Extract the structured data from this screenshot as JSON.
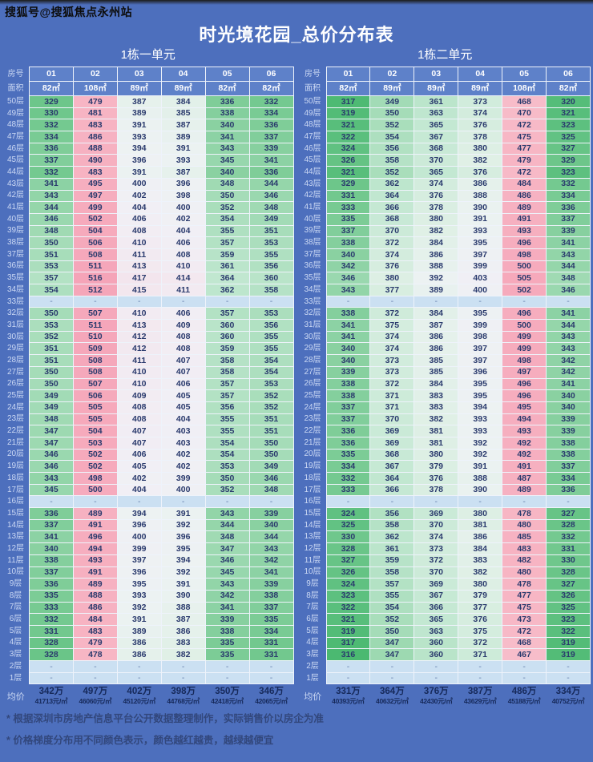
{
  "watermark": "搜狐号@搜狐焦点永州站",
  "title": "时光境花园_总价分布表",
  "empty_marker": "-",
  "notes": [
    "* 根据深圳市房地产信息平台公开数据整理制作，实际销售价以房企为准",
    "* 价格梯度分布用不同颜色表示，颜色越红越贵，越绿越便宜"
  ],
  "colors": {
    "page_bg": "#4d6fbd",
    "header_cell_bg": "#5e81c9",
    "grid_line": "#eef3fb",
    "cell_text": "#2a3a6d",
    "row_label_text": "#ccd9f4",
    "title_text": "#ffffff",
    "watermark_text": "#0d0d0d",
    "note_text": "#32477c",
    "empty_cell_bg": "#cbe0f2",
    "avg_text": "#16295a",
    "heat_stops": [
      [
        316,
        "#4bb971"
      ],
      [
        335,
        "#7ccc96"
      ],
      [
        350,
        "#a5dcb8"
      ],
      [
        365,
        "#c3e8d2"
      ],
      [
        380,
        "#ddefe4"
      ],
      [
        392,
        "#ecf2f2"
      ],
      [
        405,
        "#f1eff5"
      ],
      [
        425,
        "#f5dfe7"
      ],
      [
        450,
        "#f7c9d4"
      ],
      [
        475,
        "#f7b7c5"
      ],
      [
        516,
        "#f5a4b8"
      ]
    ]
  },
  "chart_data": [
    {
      "type": "heatmap",
      "title": "1栋一单元",
      "row_header": "房号",
      "area_header": "面积",
      "columns": [
        "01",
        "02",
        "03",
        "04",
        "05",
        "06"
      ],
      "areas": [
        "82㎡",
        "108㎡",
        "89㎡",
        "89㎡",
        "82㎡",
        "82㎡"
      ],
      "rows": [
        "50层",
        "49层",
        "48层",
        "47层",
        "46层",
        "45层",
        "44层",
        "43层",
        "42层",
        "41层",
        "40层",
        "39层",
        "38层",
        "37层",
        "36层",
        "35层",
        "34层",
        "33层",
        "32层",
        "31层",
        "30层",
        "29层",
        "28层",
        "27层",
        "26层",
        "25层",
        "24层",
        "23层",
        "22层",
        "21层",
        "20层",
        "19层",
        "18层",
        "17层",
        "16层",
        "15层",
        "14层",
        "13层",
        "12层",
        "11层",
        "10层",
        "9层",
        "8层",
        "7层",
        "6层",
        "5层",
        "4层",
        "3层",
        "2层",
        "1层"
      ],
      "values": [
        [
          329,
          479,
          387,
          384,
          336,
          332
        ],
        [
          330,
          481,
          389,
          385,
          338,
          334
        ],
        [
          332,
          483,
          391,
          387,
          340,
          336
        ],
        [
          334,
          486,
          393,
          389,
          341,
          337
        ],
        [
          336,
          488,
          394,
          391,
          343,
          339
        ],
        [
          337,
          490,
          396,
          393,
          345,
          341
        ],
        [
          332,
          483,
          391,
          387,
          340,
          336
        ],
        [
          341,
          495,
          400,
          396,
          348,
          344
        ],
        [
          343,
          497,
          402,
          398,
          350,
          346
        ],
        [
          344,
          499,
          404,
          400,
          352,
          348
        ],
        [
          346,
          502,
          406,
          402,
          354,
          349
        ],
        [
          348,
          504,
          408,
          404,
          355,
          351
        ],
        [
          350,
          506,
          410,
          406,
          357,
          353
        ],
        [
          351,
          508,
          411,
          408,
          359,
          355
        ],
        [
          353,
          511,
          413,
          410,
          361,
          356
        ],
        [
          357,
          516,
          417,
          414,
          364,
          360
        ],
        [
          354,
          512,
          415,
          411,
          362,
          358
        ],
        [
          null,
          null,
          null,
          null,
          null,
          null
        ],
        [
          350,
          507,
          410,
          406,
          357,
          353
        ],
        [
          353,
          511,
          413,
          409,
          360,
          356
        ],
        [
          352,
          510,
          412,
          408,
          360,
          355
        ],
        [
          351,
          509,
          412,
          408,
          359,
          355
        ],
        [
          351,
          508,
          411,
          407,
          358,
          354
        ],
        [
          350,
          508,
          410,
          407,
          358,
          354
        ],
        [
          350,
          507,
          410,
          406,
          357,
          353
        ],
        [
          349,
          506,
          409,
          405,
          357,
          352
        ],
        [
          349,
          505,
          408,
          405,
          356,
          352
        ],
        [
          348,
          505,
          408,
          404,
          355,
          351
        ],
        [
          347,
          504,
          407,
          403,
          355,
          351
        ],
        [
          347,
          503,
          407,
          403,
          354,
          350
        ],
        [
          346,
          502,
          406,
          402,
          354,
          350
        ],
        [
          346,
          502,
          405,
          402,
          353,
          349
        ],
        [
          343,
          498,
          402,
          399,
          350,
          346
        ],
        [
          345,
          500,
          404,
          400,
          352,
          348
        ],
        [
          null,
          null,
          null,
          null,
          null,
          null
        ],
        [
          336,
          489,
          394,
          391,
          343,
          339
        ],
        [
          337,
          491,
          396,
          392,
          344,
          340
        ],
        [
          341,
          496,
          400,
          396,
          348,
          344
        ],
        [
          340,
          494,
          399,
          395,
          347,
          343
        ],
        [
          338,
          493,
          397,
          394,
          346,
          342
        ],
        [
          337,
          491,
          396,
          392,
          345,
          341
        ],
        [
          336,
          489,
          395,
          391,
          343,
          339
        ],
        [
          335,
          488,
          393,
          390,
          342,
          338
        ],
        [
          333,
          486,
          392,
          388,
          341,
          337
        ],
        [
          332,
          484,
          391,
          387,
          339,
          335
        ],
        [
          331,
          483,
          389,
          386,
          338,
          334
        ],
        [
          328,
          479,
          386,
          383,
          335,
          331
        ],
        [
          328,
          478,
          386,
          382,
          335,
          331
        ],
        [
          null,
          null,
          null,
          null,
          null,
          null
        ],
        [
          null,
          null,
          null,
          null,
          null,
          null
        ]
      ],
      "average": {
        "label": "均价",
        "prices": [
          "342万",
          "497万",
          "402万",
          "398万",
          "350万",
          "346万"
        ],
        "unit_prices": [
          "41713元/㎡",
          "46060元/㎡",
          "45120元/㎡",
          "44768元/㎡",
          "42418元/㎡",
          "42065元/㎡"
        ]
      }
    },
    {
      "type": "heatmap",
      "title": "1栋二单元",
      "row_header": "房号",
      "area_header": "面积",
      "columns": [
        "01",
        "02",
        "03",
        "04",
        "05",
        "06"
      ],
      "areas": [
        "82㎡",
        "89㎡",
        "89㎡",
        "89㎡",
        "108㎡",
        "82㎡"
      ],
      "rows": [
        "50层",
        "49层",
        "48层",
        "47层",
        "46层",
        "45层",
        "44层",
        "43层",
        "42层",
        "41层",
        "40层",
        "39层",
        "38层",
        "37层",
        "36层",
        "35层",
        "34层",
        "33层",
        "32层",
        "31层",
        "30层",
        "29层",
        "28层",
        "27层",
        "26层",
        "25层",
        "24层",
        "23层",
        "22层",
        "21层",
        "20层",
        "19层",
        "18层",
        "17层",
        "16层",
        "15层",
        "14层",
        "13层",
        "12层",
        "11层",
        "10层",
        "9层",
        "8层",
        "7层",
        "6层",
        "5层",
        "4层",
        "3层",
        "2层",
        "1层"
      ],
      "values": [
        [
          317,
          349,
          361,
          373,
          468,
          320
        ],
        [
          319,
          350,
          363,
          374,
          470,
          321
        ],
        [
          321,
          352,
          365,
          376,
          472,
          323
        ],
        [
          322,
          354,
          367,
          378,
          475,
          325
        ],
        [
          324,
          356,
          368,
          380,
          477,
          327
        ],
        [
          326,
          358,
          370,
          382,
          479,
          329
        ],
        [
          321,
          352,
          365,
          376,
          472,
          323
        ],
        [
          329,
          362,
          374,
          386,
          484,
          332
        ],
        [
          331,
          364,
          376,
          388,
          486,
          334
        ],
        [
          333,
          366,
          378,
          390,
          489,
          336
        ],
        [
          335,
          368,
          380,
          391,
          491,
          337
        ],
        [
          337,
          370,
          382,
          393,
          493,
          339
        ],
        [
          338,
          372,
          384,
          395,
          496,
          341
        ],
        [
          340,
          374,
          386,
          397,
          498,
          343
        ],
        [
          342,
          376,
          388,
          399,
          500,
          344
        ],
        [
          346,
          380,
          392,
          403,
          505,
          348
        ],
        [
          343,
          377,
          389,
          400,
          502,
          346
        ],
        [
          null,
          null,
          null,
          null,
          null,
          null
        ],
        [
          338,
          372,
          384,
          395,
          496,
          341
        ],
        [
          341,
          375,
          387,
          399,
          500,
          344
        ],
        [
          341,
          374,
          386,
          398,
          499,
          343
        ],
        [
          340,
          374,
          386,
          397,
          499,
          343
        ],
        [
          340,
          373,
          385,
          397,
          498,
          342
        ],
        [
          339,
          373,
          385,
          396,
          497,
          342
        ],
        [
          338,
          372,
          384,
          395,
          496,
          341
        ],
        [
          338,
          371,
          383,
          395,
          496,
          340
        ],
        [
          337,
          371,
          383,
          394,
          495,
          340
        ],
        [
          337,
          370,
          382,
          393,
          494,
          339
        ],
        [
          336,
          369,
          381,
          393,
          493,
          339
        ],
        [
          336,
          369,
          381,
          392,
          492,
          338
        ],
        [
          335,
          368,
          380,
          392,
          492,
          338
        ],
        [
          334,
          367,
          379,
          391,
          491,
          337
        ],
        [
          332,
          364,
          376,
          388,
          487,
          334
        ],
        [
          333,
          366,
          378,
          390,
          489,
          336
        ],
        [
          null,
          null,
          null,
          null,
          null,
          null
        ],
        [
          324,
          356,
          369,
          380,
          478,
          327
        ],
        [
          325,
          358,
          370,
          381,
          480,
          328
        ],
        [
          330,
          362,
          374,
          386,
          485,
          332
        ],
        [
          328,
          361,
          373,
          384,
          483,
          331
        ],
        [
          327,
          359,
          372,
          383,
          482,
          330
        ],
        [
          326,
          358,
          370,
          382,
          480,
          328
        ],
        [
          324,
          357,
          369,
          380,
          478,
          327
        ],
        [
          323,
          355,
          367,
          379,
          477,
          326
        ],
        [
          322,
          354,
          366,
          377,
          475,
          325
        ],
        [
          321,
          352,
          365,
          376,
          473,
          323
        ],
        [
          319,
          350,
          363,
          375,
          472,
          322
        ],
        [
          317,
          347,
          360,
          372,
          468,
          319
        ],
        [
          316,
          347,
          360,
          371,
          467,
          319
        ],
        [
          null,
          null,
          null,
          null,
          null,
          null
        ],
        [
          null,
          null,
          null,
          null,
          null,
          null
        ]
      ],
      "average": {
        "label": "均价",
        "prices": [
          "331万",
          "364万",
          "376万",
          "387万",
          "486万",
          "334万"
        ],
        "unit_prices": [
          "40393元/㎡",
          "40632元/㎡",
          "42430元/㎡",
          "43629元/㎡",
          "45188元/㎡",
          "40752元/㎡"
        ]
      }
    }
  ]
}
